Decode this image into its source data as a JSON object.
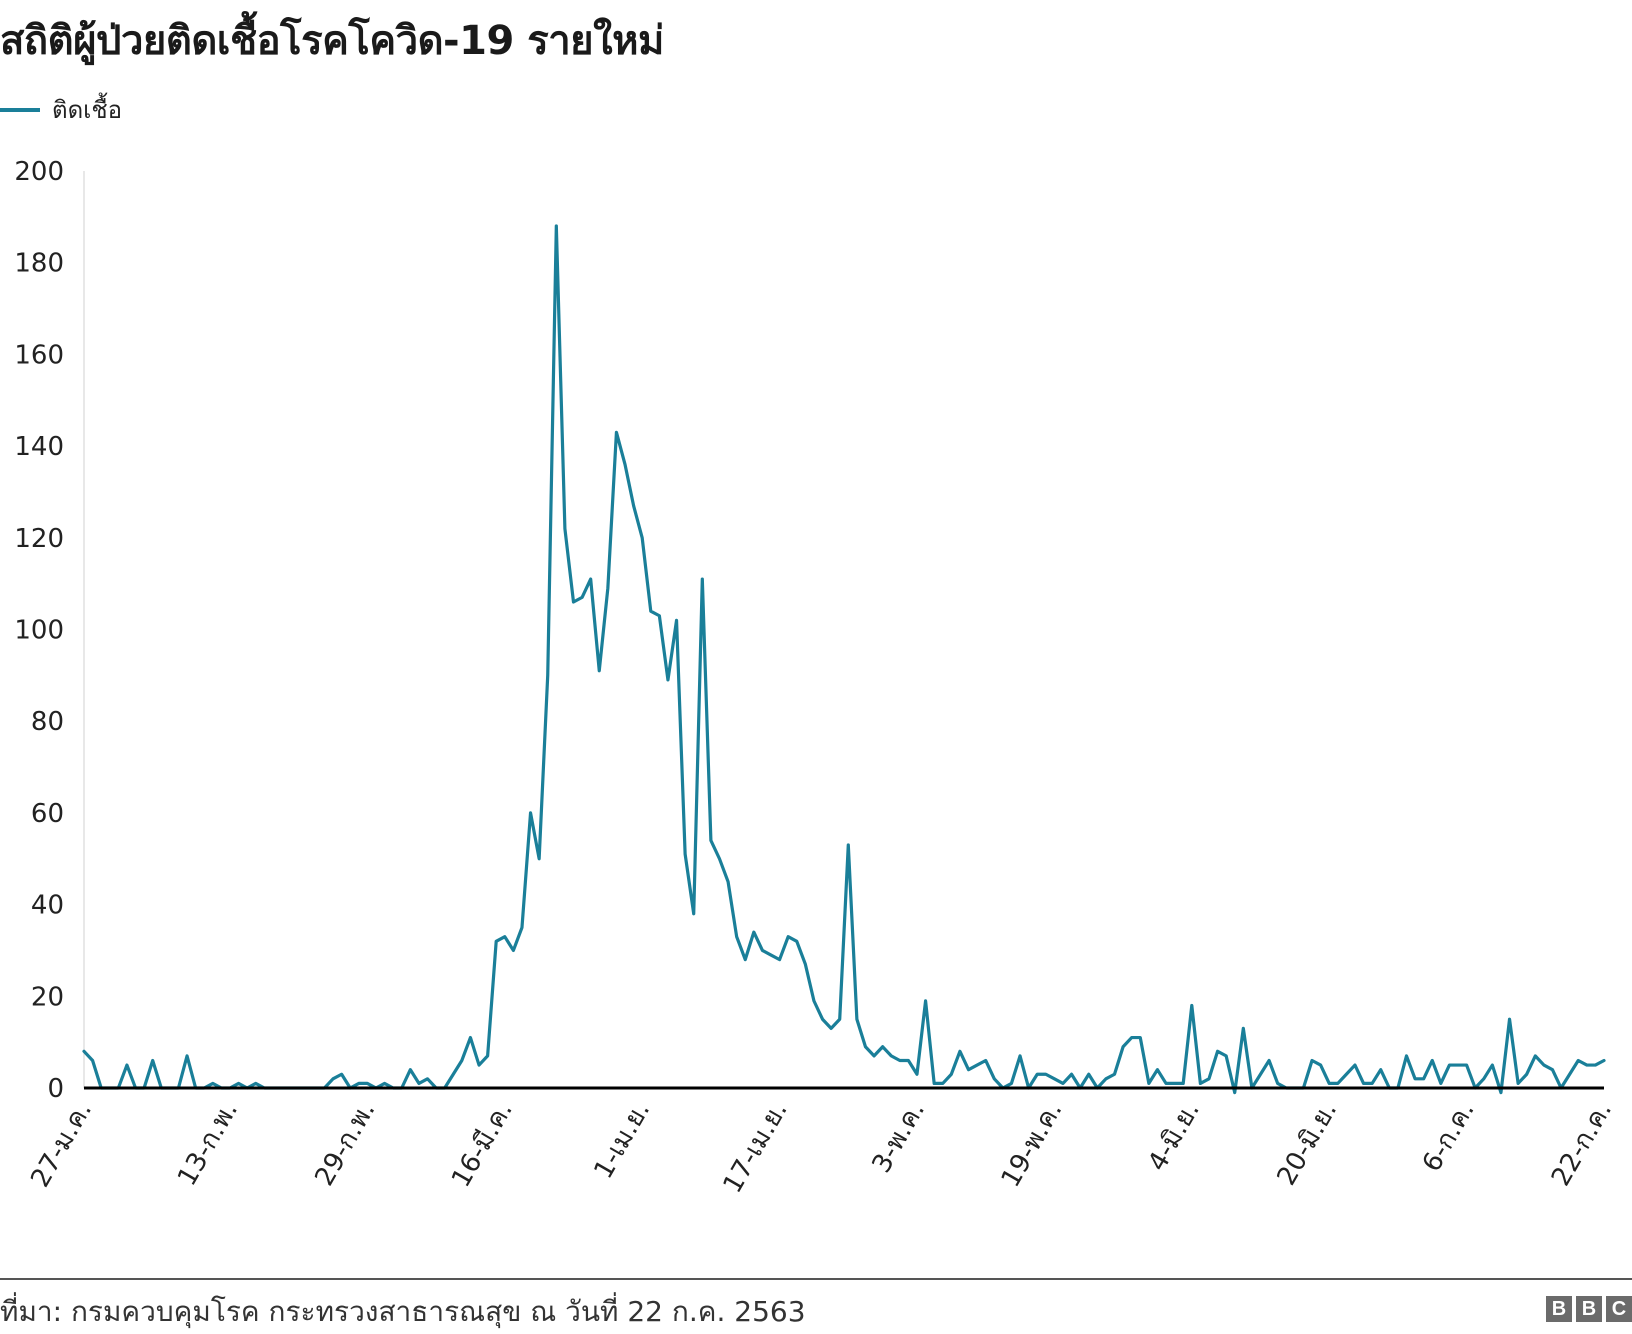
{
  "title": "สถิติผู้ป่วยติดเชื้อโรคโควิด-19 รายใหม่",
  "legend": {
    "label": "ติดเชื้อ",
    "color": "#1a7f99"
  },
  "source": "ที่มา: กรมควบคุมโรค กระทรวงสาธารณสุข ณ วันที่ 22 ก.ค. 2563",
  "logo": {
    "letters": [
      "B",
      "B",
      "C"
    ]
  },
  "chart_data": {
    "type": "line",
    "title": "สถิติผู้ป่วยติดเชื้อโรคโควิด-19 รายใหม่",
    "xlabel": "",
    "ylabel": "",
    "ylim": [
      0,
      200
    ],
    "yticks": [
      0,
      20,
      40,
      60,
      80,
      100,
      120,
      140,
      160,
      180,
      200
    ],
    "xticks": [
      {
        "index": 0,
        "label": "27-ม.ค."
      },
      {
        "index": 17,
        "label": "13-ก.พ."
      },
      {
        "index": 33,
        "label": "29-ก.พ."
      },
      {
        "index": 49,
        "label": "16-มี.ค."
      },
      {
        "index": 65,
        "label": "1-เม.ย."
      },
      {
        "index": 81,
        "label": "17-เม.ย."
      },
      {
        "index": 97,
        "label": "3-พ.ค."
      },
      {
        "index": 113,
        "label": "19-พ.ค."
      },
      {
        "index": 129,
        "label": "4-มิ.ย."
      },
      {
        "index": 145,
        "label": "20-มิ.ย."
      },
      {
        "index": 161,
        "label": "6-ก.ค."
      },
      {
        "index": 177,
        "label": "22-ก.ค."
      }
    ],
    "grid": false,
    "legend_position": "top-left",
    "series": [
      {
        "name": "ติดเชื้อ",
        "color": "#1a7f99",
        "values": [
          8,
          6,
          0,
          0,
          0,
          5,
          0,
          0,
          6,
          0,
          0,
          0,
          7,
          0,
          0,
          1,
          0,
          0,
          1,
          0,
          1,
          0,
          0,
          0,
          0,
          0,
          0,
          0,
          0,
          2,
          3,
          0,
          1,
          1,
          0,
          1,
          0,
          0,
          4,
          1,
          2,
          0,
          0,
          3,
          6,
          11,
          5,
          7,
          32,
          33,
          30,
          35,
          60,
          50,
          90,
          188,
          122,
          106,
          107,
          111,
          91,
          109,
          143,
          136,
          127,
          120,
          104,
          103,
          89,
          102,
          51,
          38,
          111,
          54,
          50,
          45,
          33,
          28,
          34,
          30,
          29,
          28,
          33,
          32,
          27,
          19,
          15,
          13,
          15,
          53,
          15,
          9,
          7,
          9,
          7,
          6,
          6,
          3,
          19,
          1,
          1,
          3,
          8,
          4,
          5,
          6,
          2,
          0,
          1,
          7,
          0,
          3,
          3,
          2,
          1,
          3,
          0,
          3,
          0,
          2,
          3,
          9,
          11,
          11,
          1,
          4,
          1,
          1,
          1,
          18,
          1,
          2,
          8,
          7,
          -1,
          13,
          0,
          3,
          6,
          1,
          0,
          0,
          0,
          6,
          5,
          1,
          1,
          3,
          5,
          1,
          1,
          4,
          0,
          0,
          7,
          2,
          2,
          6,
          1,
          5,
          5,
          5,
          0,
          2,
          5,
          -1,
          15,
          1,
          3,
          7,
          5,
          4,
          0,
          3,
          6,
          5,
          5,
          6
        ]
      }
    ]
  }
}
